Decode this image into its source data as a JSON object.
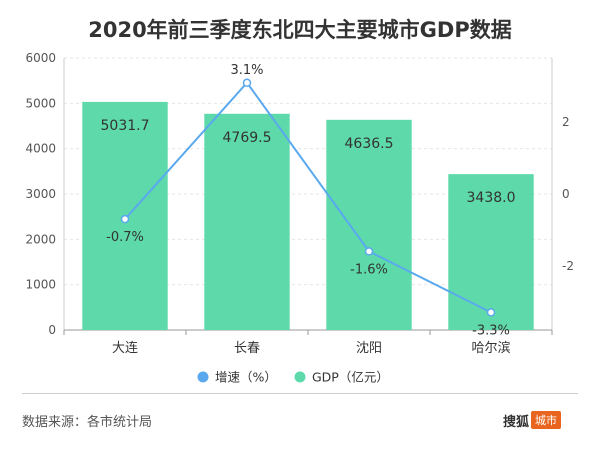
{
  "page": {
    "source": "数据来源：各市统计局",
    "brand": "搜狐",
    "brand_tag": "城市"
  },
  "chart_data": {
    "type": "bar",
    "title": "2020年前三季度东北四大主要城市GDP数据",
    "categories": [
      "大连",
      "长春",
      "沈阳",
      "哈尔滨"
    ],
    "series": [
      {
        "name": "GDP（亿元）",
        "type": "bar",
        "axis": "left",
        "values": [
          5031.7,
          4769.5,
          4636.5,
          3438.0
        ],
        "labels": [
          "5031.7",
          "4769.5",
          "4636.5",
          "3438.0"
        ],
        "color": "#5dd9aa"
      },
      {
        "name": "增速（%）",
        "type": "line",
        "axis": "right",
        "values": [
          -0.7,
          3.1,
          -1.6,
          -3.3
        ],
        "labels": [
          "-0.7%",
          "3.1%",
          "-1.6%",
          "-3.3%"
        ],
        "color": "#5aa9ee"
      }
    ],
    "y_left": {
      "min": 0,
      "max": 6000,
      "ticks": [
        "0",
        "1000",
        "2000",
        "3000",
        "4000",
        "5000",
        "6000"
      ]
    },
    "y_right": {
      "min": -3.79,
      "max": 3.79,
      "ticks": [
        "-2",
        "0",
        "2"
      ]
    },
    "grid": true,
    "legend_position": "bottom"
  }
}
